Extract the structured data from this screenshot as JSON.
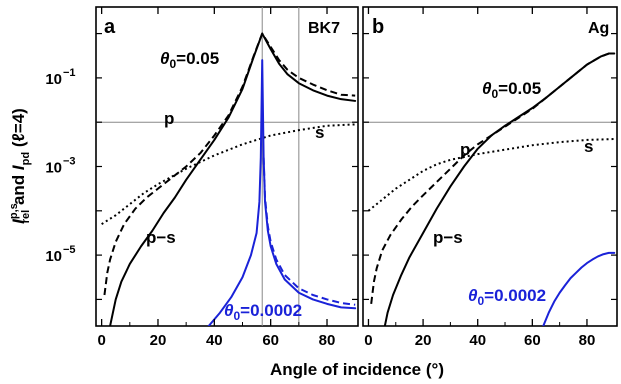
{
  "figure": {
    "xlabel": "Angle of incidence (°)",
    "ylabel": {
      "main": "I",
      "sub1": "rel",
      "sup1": "p,s",
      "mid": " and ",
      "main2": "I",
      "sub2": "pd",
      "paren": " (ℓ=4)"
    }
  },
  "colors": {
    "black": "#000000",
    "blue": "#1a22d8",
    "guide": "#888888"
  },
  "chart_data": [
    {
      "type": "line",
      "panel_label": "a",
      "material": "BK7",
      "xlim": [
        -2,
        91
      ],
      "ylim_log10": [
        -6.6,
        0.6
      ],
      "xticks": [
        "0",
        "20",
        "40",
        "60",
        "80"
      ],
      "yticks": [
        {
          "base": "10",
          "exp": "−1",
          "log10": -1
        },
        {
          "base": "10",
          "exp": "−3",
          "log10": -3
        },
        {
          "base": "10",
          "exp": "−5",
          "log10": -5
        }
      ],
      "reference_lines": {
        "horizontal_log10": -2,
        "vertical_x": [
          57,
          70
        ]
      },
      "annotations": {
        "theta_large": {
          "sym": "θ",
          "sub": "0",
          "rest": "=0.05"
        },
        "p": "p",
        "s": "s",
        "pms": "p−s",
        "theta_small": {
          "sym": "θ",
          "sub": "0",
          "rest": "=0.0002"
        }
      },
      "series": [
        {
          "style": "dashed",
          "color": "black",
          "x": [
            1,
            2,
            3,
            5,
            8,
            12,
            16,
            20,
            25,
            30,
            35,
            40,
            45,
            50,
            54,
            57,
            60,
            63,
            66,
            70,
            75,
            80,
            85,
            90
          ],
          "y": [
            -5.9,
            -5.4,
            -5.1,
            -4.7,
            -4.3,
            -3.95,
            -3.7,
            -3.5,
            -3.25,
            -3.0,
            -2.7,
            -2.3,
            -1.85,
            -1.2,
            -0.5,
            0.0,
            -0.3,
            -0.6,
            -0.82,
            -1.0,
            -1.15,
            -1.28,
            -1.38,
            -1.4
          ]
        },
        {
          "style": "solid",
          "color": "black",
          "x": [
            3,
            4,
            5,
            7,
            10,
            14,
            18,
            22,
            26,
            30,
            35,
            40,
            45,
            50,
            54,
            57,
            60,
            63,
            66,
            70,
            75,
            80,
            85,
            90
          ],
          "y": [
            -6.6,
            -6.3,
            -6.0,
            -5.6,
            -5.2,
            -4.8,
            -4.45,
            -4.05,
            -3.7,
            -3.3,
            -2.85,
            -2.4,
            -1.9,
            -1.25,
            -0.52,
            0.0,
            -0.35,
            -0.68,
            -0.92,
            -1.12,
            -1.28,
            -1.4,
            -1.48,
            -1.52
          ]
        },
        {
          "style": "dotted",
          "color": "black",
          "x": [
            0,
            5,
            10,
            15,
            20,
            30,
            40,
            50,
            57,
            60,
            70,
            80,
            90
          ],
          "y": [
            -4.3,
            -4.1,
            -3.85,
            -3.6,
            -3.4,
            -3.05,
            -2.75,
            -2.5,
            -2.36,
            -2.3,
            -2.18,
            -2.08,
            -2.05
          ]
        },
        {
          "style": "solid",
          "color": "blue",
          "x": [
            38,
            42,
            46,
            50,
            53,
            55,
            56,
            56.5,
            57,
            57.5,
            58,
            59,
            60,
            62,
            65,
            70,
            75,
            80,
            85,
            90
          ],
          "y": [
            -6.6,
            -6.3,
            -5.95,
            -5.5,
            -5.0,
            -4.5,
            -3.8,
            -2.8,
            -0.6,
            -2.8,
            -3.8,
            -4.45,
            -4.8,
            -5.2,
            -5.55,
            -5.85,
            -6.0,
            -6.1,
            -6.18,
            -6.2
          ]
        },
        {
          "style": "dashed",
          "color": "blue",
          "x": [
            57.5,
            58,
            59,
            60,
            62,
            65,
            70,
            75,
            80,
            85,
            90
          ],
          "y": [
            -2.8,
            -3.7,
            -4.35,
            -4.7,
            -5.1,
            -5.45,
            -5.75,
            -5.9,
            -6.0,
            -6.08,
            -6.12
          ]
        }
      ]
    },
    {
      "type": "line",
      "panel_label": "b",
      "material": "Ag",
      "xlim": [
        -2,
        91
      ],
      "ylim_log10": [
        -6.6,
        0.6
      ],
      "xticks": [
        "0",
        "20",
        "40",
        "60",
        "80"
      ],
      "reference_lines": {
        "horizontal_log10": -2
      },
      "annotations": {
        "theta_large": {
          "sym": "θ",
          "sub": "0",
          "rest": "=0.05"
        },
        "p": "p",
        "s": "s",
        "pms": "p−s",
        "theta_small": {
          "sym": "θ",
          "sub": "0",
          "rest": "=0.0002"
        }
      },
      "series": [
        {
          "style": "dashed",
          "color": "black",
          "x": [
            1,
            2,
            3,
            5,
            8,
            12,
            16,
            20,
            25,
            30,
            35,
            40,
            45,
            50,
            55,
            60,
            65,
            70,
            75,
            80,
            85,
            88,
            90
          ],
          "y": [
            -6.1,
            -5.6,
            -5.3,
            -4.9,
            -4.55,
            -4.2,
            -3.9,
            -3.65,
            -3.35,
            -3.05,
            -2.75,
            -2.5,
            -2.3,
            -2.1,
            -1.9,
            -1.7,
            -1.45,
            -1.2,
            -0.95,
            -0.7,
            -0.52,
            -0.45,
            -0.45
          ]
        },
        {
          "style": "solid",
          "color": "black",
          "x": [
            6,
            7,
            9,
            12,
            15,
            20,
            25,
            30,
            35,
            40,
            45,
            50,
            55,
            60,
            65,
            70,
            75,
            80,
            85,
            88,
            90
          ],
          "y": [
            -6.6,
            -6.3,
            -5.9,
            -5.45,
            -5.05,
            -4.5,
            -3.95,
            -3.45,
            -3.0,
            -2.6,
            -2.3,
            -2.08,
            -1.88,
            -1.68,
            -1.45,
            -1.2,
            -0.95,
            -0.7,
            -0.52,
            -0.45,
            -0.45
          ]
        },
        {
          "style": "dotted",
          "color": "black",
          "x": [
            0,
            5,
            10,
            15,
            20,
            25,
            30,
            40,
            50,
            60,
            70,
            80,
            90
          ],
          "y": [
            -4.0,
            -3.75,
            -3.5,
            -3.3,
            -3.1,
            -2.95,
            -2.85,
            -2.72,
            -2.62,
            -2.52,
            -2.45,
            -2.4,
            -2.38
          ]
        },
        {
          "style": "solid",
          "color": "blue",
          "x": [
            64,
            66,
            68,
            70,
            72,
            74,
            76,
            78,
            80,
            82,
            84,
            86,
            88,
            90
          ],
          "y": [
            -6.6,
            -6.3,
            -6.05,
            -5.85,
            -5.68,
            -5.52,
            -5.4,
            -5.28,
            -5.18,
            -5.1,
            -5.03,
            -4.98,
            -4.95,
            -4.95
          ]
        }
      ]
    }
  ]
}
